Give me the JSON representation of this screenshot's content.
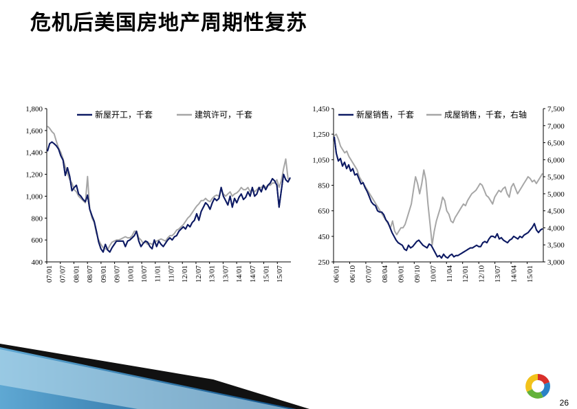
{
  "slide": {
    "title": "危机后美国房地产周期性复苏",
    "page_number": "26"
  },
  "colors": {
    "navy": "#0d1a63",
    "gray": "#a6a6a6",
    "accent_blue": "#1b6fa8",
    "logo_red": "#d9302b",
    "logo_green": "#63b23a",
    "logo_blue": "#2a82c6",
    "logo_yellow": "#f2c21b"
  },
  "icons": {
    "logo": "company-logo-icon"
  },
  "chart_data": [
    {
      "type": "line",
      "legend": [
        "新屋开工，千套",
        "建筑许可，千套"
      ],
      "legend_placement": "top",
      "y_ticks": [
        "1,800",
        "1,600",
        "1,400",
        "1,200",
        "1,000",
        "800",
        "600",
        "400"
      ],
      "ylim": [
        400,
        1800
      ],
      "x_ticks": [
        "07/01",
        "07/07",
        "08/01",
        "08/07",
        "09/01",
        "09/07",
        "10/01",
        "10/07",
        "11/01",
        "11/07",
        "12/01",
        "12/07",
        "13/01",
        "13/07",
        "14/01",
        "14/07",
        "15/01",
        "15/07"
      ],
      "x_start": "2007-01",
      "series": [
        {
          "name": "新屋开工，千套",
          "color": "#0d1a63",
          "values": [
            1410,
            1480,
            1495,
            1480,
            1460,
            1430,
            1370,
            1330,
            1190,
            1260,
            1180,
            1050,
            1080,
            1100,
            1020,
            1000,
            970,
            950,
            1010,
            880,
            820,
            770,
            680,
            580,
            520,
            490,
            560,
            510,
            490,
            530,
            560,
            590,
            590,
            590,
            590,
            540,
            590,
            600,
            620,
            640,
            680,
            590,
            540,
            570,
            590,
            580,
            540,
            520,
            600,
            540,
            590,
            560,
            540,
            570,
            600,
            620,
            600,
            630,
            640,
            680,
            700,
            720,
            700,
            740,
            720,
            760,
            780,
            840,
            780,
            860,
            900,
            940,
            920,
            880,
            940,
            980,
            960,
            980,
            1080,
            1000,
            960,
            920,
            1000,
            900,
            980,
            940,
            990,
            1020,
            970,
            990,
            1040,
            1000,
            1080,
            1000,
            1020,
            1080,
            1040,
            1100,
            1060,
            1100,
            1120,
            1160,
            1140,
            1100,
            900,
            1050,
            1200,
            1150,
            1130,
            1170
          ]
        },
        {
          "name": "建筑许可，千套",
          "color": "#a6a6a6",
          "values": [
            1640,
            1620,
            1590,
            1570,
            1500,
            1440,
            1400,
            1340,
            1270,
            1210,
            1150,
            1120,
            1060,
            1040,
            1000,
            980,
            960,
            940,
            1180,
            880,
            800,
            760,
            660,
            600,
            560,
            530,
            520,
            510,
            550,
            580,
            590,
            600,
            600,
            610,
            620,
            630,
            620,
            620,
            640,
            680,
            680,
            620,
            600,
            570,
            580,
            560,
            570,
            560,
            580,
            590,
            600,
            610,
            600,
            590,
            620,
            640,
            640,
            660,
            690,
            700,
            720,
            740,
            770,
            800,
            820,
            850,
            880,
            910,
            930,
            960,
            960,
            980,
            960,
            950,
            980,
            1000,
            1010,
            1000,
            1060,
            1020,
            1000,
            1020,
            1040,
            1000,
            1020,
            1030,
            1050,
            1080,
            1060,
            1060,
            1080,
            1040,
            1070,
            1040,
            1060,
            1080,
            1080,
            1100,
            1080,
            1100,
            1100,
            1120,
            1120,
            1150,
            1080,
            1140,
            1250,
            1340,
            1160,
            1150
          ]
        }
      ]
    },
    {
      "type": "line",
      "legend": [
        "新屋销售，千套",
        "成屋销售，千套，右轴"
      ],
      "legend_placement": "top",
      "y_ticks": [
        "1,450",
        "1,250",
        "1,050",
        "850",
        "650",
        "450",
        "250"
      ],
      "ylim": [
        250,
        1450
      ],
      "y2_ticks": [
        "7,500",
        "7,000",
        "6,500",
        "6,000",
        "5,500",
        "5,000",
        "4,500",
        "4,000",
        "3,500",
        "3,000"
      ],
      "y2lim": [
        3000,
        7500
      ],
      "x_ticks": [
        "06/01",
        "06/10",
        "07/07",
        "08/04",
        "09/01",
        "09/10",
        "10/07",
        "11/04",
        "12/01",
        "12/10",
        "13/07",
        "14/04",
        "15/01"
      ],
      "x_start": "2006-01",
      "series": [
        {
          "name": "新屋销售，千套",
          "color": "#0d1a63",
          "axis": "left",
          "values": [
            1230,
            1100,
            1040,
            1060,
            1000,
            1030,
            980,
            1010,
            960,
            980,
            930,
            940,
            900,
            860,
            870,
            830,
            800,
            760,
            720,
            700,
            690,
            650,
            640,
            640,
            620,
            580,
            560,
            520,
            480,
            450,
            420,
            400,
            390,
            380,
            350,
            340,
            380,
            360,
            370,
            390,
            410,
            420,
            400,
            380,
            370,
            360,
            390,
            380,
            350,
            320,
            290,
            300,
            280,
            310,
            290,
            280,
            300,
            310,
            290,
            300,
            300,
            310,
            320,
            330,
            340,
            350,
            360,
            360,
            370,
            380,
            370,
            370,
            400,
            410,
            400,
            430,
            450,
            450,
            440,
            470,
            430,
            440,
            420,
            410,
            400,
            420,
            430,
            450,
            440,
            430,
            450,
            440,
            460,
            470,
            480,
            500,
            520,
            550,
            500,
            480,
            500,
            510
          ]
        },
        {
          "name": "成屋销售，千套，右轴",
          "color": "#a6a6a6",
          "axis": "right",
          "values": [
            6700,
            6750,
            6600,
            6400,
            6300,
            6200,
            6250,
            6100,
            6000,
            5900,
            5800,
            5700,
            5500,
            5400,
            5300,
            5200,
            5100,
            5000,
            4900,
            4800,
            4700,
            4600,
            4500,
            4400,
            4300,
            4200,
            4100,
            4000,
            4200,
            3900,
            3800,
            3900,
            4000,
            4000,
            4100,
            4300,
            4500,
            4700,
            5100,
            5500,
            5300,
            5000,
            5300,
            5700,
            5400,
            4700,
            4100,
            3500,
            3900,
            4200,
            4400,
            4600,
            4900,
            4800,
            4500,
            4400,
            4200,
            4150,
            4300,
            4400,
            4500,
            4600,
            4700,
            4650,
            4800,
            4900,
            5000,
            5050,
            5100,
            5200,
            5300,
            5250,
            5100,
            4950,
            4900,
            4800,
            4700,
            4900,
            5000,
            5100,
            5050,
            5150,
            5200,
            5000,
            4900,
            5200,
            5300,
            5150,
            5000,
            5100,
            5200,
            5300,
            5400,
            5500,
            5450,
            5350,
            5400,
            5300,
            5400,
            5500,
            5600
          ]
        }
      ]
    }
  ]
}
